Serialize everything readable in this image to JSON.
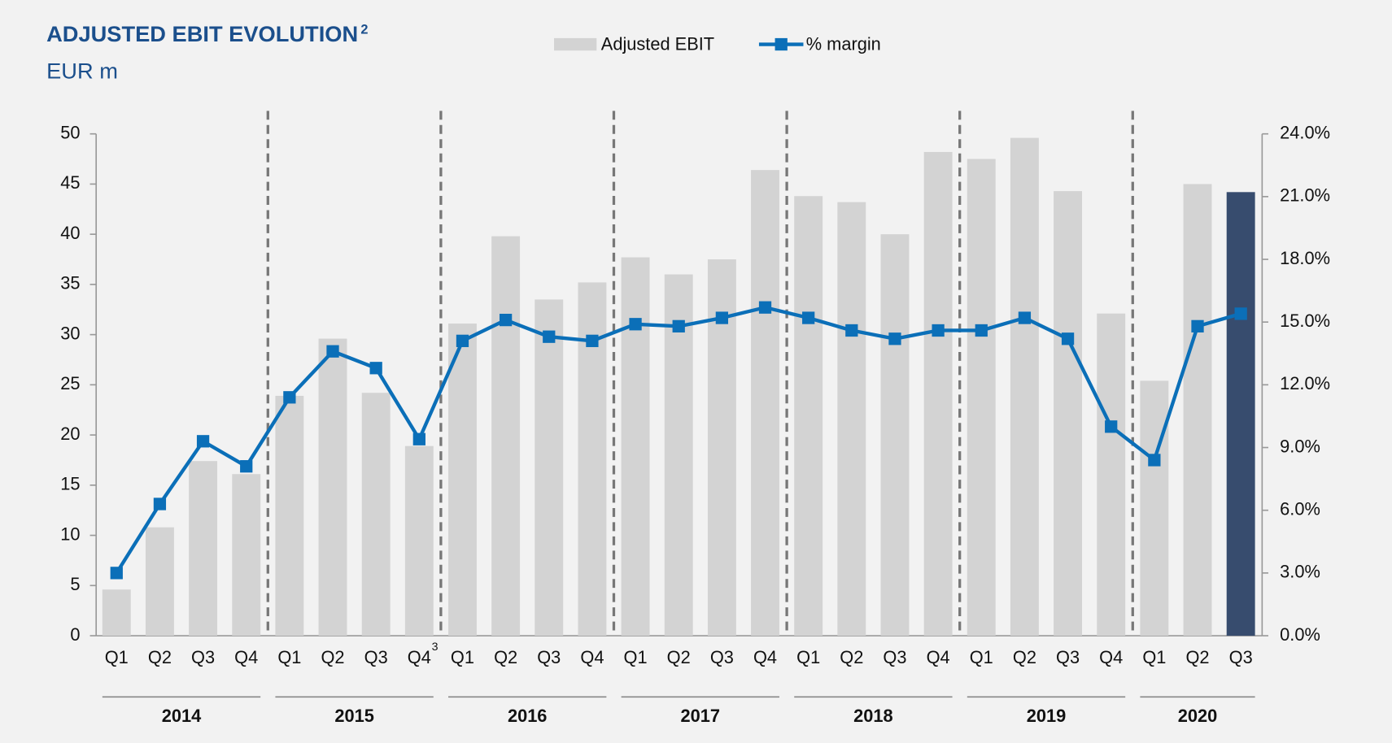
{
  "chart_data": {
    "type": "bar_line",
    "title": "ADJUSTED EBIT EVOLUTION",
    "title_note": "2",
    "subtitle": "EUR m",
    "groups": [
      {
        "label": "2014",
        "categories": [
          "Q1",
          "Q2",
          "Q3",
          "Q4"
        ]
      },
      {
        "label": "2015",
        "categories": [
          "Q1",
          "Q2",
          "Q3",
          "Q4"
        ],
        "note": "3"
      },
      {
        "label": "2016",
        "categories": [
          "Q1",
          "Q2",
          "Q3",
          "Q4"
        ]
      },
      {
        "label": "2017",
        "categories": [
          "Q1",
          "Q2",
          "Q3",
          "Q4"
        ]
      },
      {
        "label": "2018",
        "categories": [
          "Q1",
          "Q2",
          "Q3",
          "Q4"
        ]
      },
      {
        "label": "2019",
        "categories": [
          "Q1",
          "Q2",
          "Q3",
          "Q4"
        ]
      },
      {
        "label": "2020",
        "categories": [
          "Q1",
          "Q2",
          "Q3"
        ]
      }
    ],
    "series": [
      {
        "name": "Adjusted EBIT",
        "type": "bar",
        "color": "#d3d3d3",
        "colors": [
          "#d3d3d3",
          "#d3d3d3",
          "#d3d3d3",
          "#d3d3d3",
          "#d3d3d3",
          "#d3d3d3",
          "#d3d3d3",
          "#d3d3d3",
          "#d3d3d3",
          "#d3d3d3",
          "#d3d3d3",
          "#d3d3d3",
          "#d3d3d3",
          "#d3d3d3",
          "#d3d3d3",
          "#d3d3d3",
          "#d3d3d3",
          "#d3d3d3",
          "#d3d3d3",
          "#d3d3d3",
          "#d3d3d3",
          "#d3d3d3",
          "#d3d3d3",
          "#d3d3d3",
          "#d3d3d3",
          "#d3d3d3",
          "#374c6e"
        ],
        "values": [
          4.6,
          10.8,
          17.4,
          16.1,
          23.9,
          29.6,
          24.2,
          18.9,
          31.1,
          39.8,
          33.5,
          35.2,
          37.7,
          36.0,
          37.5,
          46.4,
          43.8,
          43.2,
          40.0,
          48.2,
          47.5,
          49.6,
          44.3,
          32.1,
          25.4,
          45.0,
          44.2
        ]
      },
      {
        "name": "% margin",
        "type": "line",
        "axis": "y2",
        "color": "#0b6fb8",
        "values": [
          3.0,
          6.3,
          9.3,
          8.1,
          11.4,
          13.6,
          12.8,
          9.4,
          14.1,
          15.1,
          14.3,
          14.1,
          14.9,
          14.8,
          15.2,
          15.7,
          15.2,
          14.6,
          14.2,
          14.6,
          14.6,
          15.2,
          14.2,
          10.0,
          8.4,
          14.8,
          15.4
        ]
      }
    ],
    "ylim": [
      0,
      50
    ],
    "yticks": [
      0,
      5,
      10,
      15,
      20,
      25,
      30,
      35,
      40,
      45,
      50
    ],
    "y2lim": [
      0,
      24
    ],
    "y2ticks": [
      {
        "value": 0,
        "label": "0.0%"
      },
      {
        "value": 3,
        "label": "3.0%"
      },
      {
        "value": 6,
        "label": "6.0%"
      },
      {
        "value": 9,
        "label": "9.0%"
      },
      {
        "value": 12,
        "label": "12.0%"
      },
      {
        "value": 15,
        "label": "15.0%"
      },
      {
        "value": 18,
        "label": "18.0%"
      },
      {
        "value": 21,
        "label": "21.0%"
      },
      {
        "value": 24,
        "label": "24.0%"
      }
    ],
    "legend": "top"
  }
}
